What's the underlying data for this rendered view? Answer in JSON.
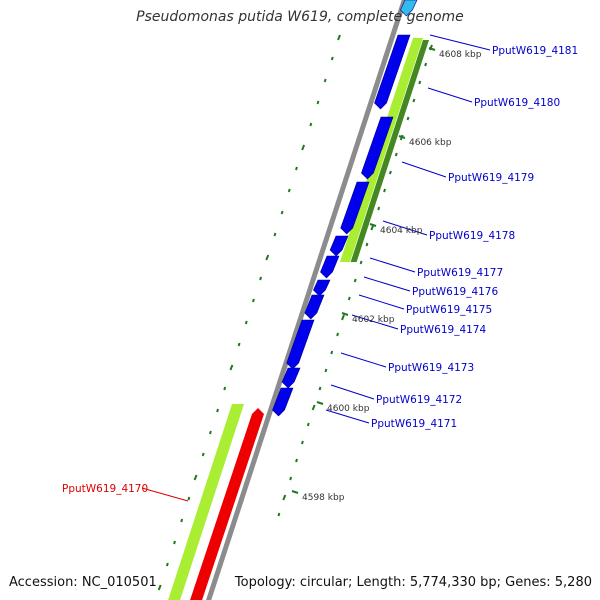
{
  "title": "Pseudomonas putida W619, complete genome",
  "accession": "Accession: NC_010501",
  "topology": "Topology: circular; Length: 5,774,330 bp; Genes: 5,280",
  "colors": {
    "backbone": "#8c8c8c",
    "cds": "#0000ee",
    "cds_alt": "#33bbee",
    "gc_light": "#aaee33",
    "gc_dark": "#448822",
    "rna": "#ee0000",
    "tick": "#227722",
    "label_blue": "#0000cc",
    "label_red": "#dd0000"
  },
  "scale_labels": [
    "4608 kbp",
    "4606 kbp",
    "4604 kbp",
    "4602 kbp",
    "4600 kbp",
    "4598 kbp"
  ],
  "gene_labels": [
    {
      "text": "PputW619_4181",
      "color": "blue"
    },
    {
      "text": "PputW619_4180",
      "color": "blue"
    },
    {
      "text": "PputW619_4179",
      "color": "blue"
    },
    {
      "text": "PputW619_4178",
      "color": "blue"
    },
    {
      "text": "PputW619_4177",
      "color": "blue"
    },
    {
      "text": "PputW619_4176",
      "color": "blue"
    },
    {
      "text": "PputW619_4175",
      "color": "blue"
    },
    {
      "text": "PputW619_4174",
      "color": "blue"
    },
    {
      "text": "PputW619_4173",
      "color": "blue"
    },
    {
      "text": "PputW619_4172",
      "color": "blue"
    },
    {
      "text": "PputW619_4171",
      "color": "blue"
    },
    {
      "text": "PputW619_4170",
      "color": "red"
    }
  ]
}
